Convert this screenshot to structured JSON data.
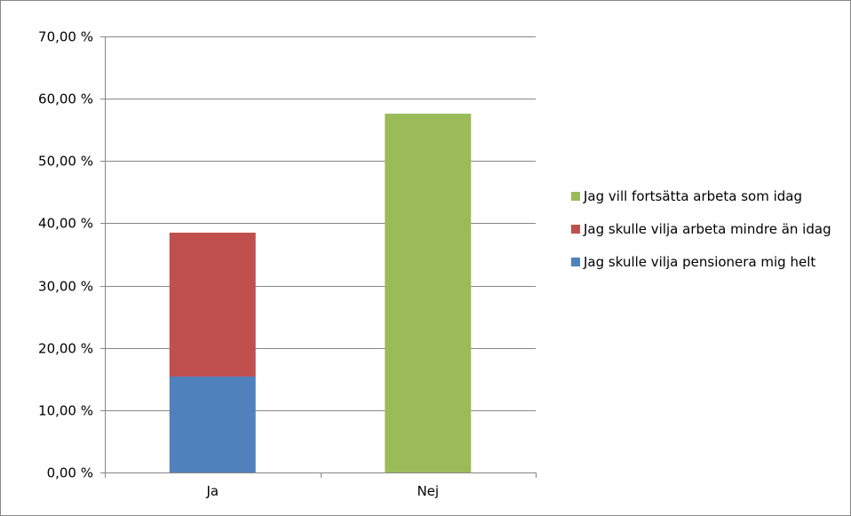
{
  "chart_data": {
    "type": "bar",
    "stacked": true,
    "categories": [
      "Ja",
      "Nej"
    ],
    "series": [
      {
        "name": "Jag skulle vilja pensionera mig helt",
        "color": "#4F81BD",
        "values": [
          15.4,
          0
        ]
      },
      {
        "name": "Jag skulle vilja arbeta mindre än idag",
        "color": "#C0504D",
        "values": [
          23.1,
          0
        ]
      },
      {
        "name": "Jag vill fortsätta arbeta som idag",
        "color": "#9BBB59",
        "values": [
          0,
          57.6
        ]
      }
    ],
    "ylim": [
      0,
      70
    ],
    "yticks": [
      "0,00 %",
      "10,00 %",
      "20,00 %",
      "30,00 %",
      "40,00 %",
      "50,00 %",
      "60,00 %",
      "70,00 %"
    ],
    "grid": true,
    "legend_position": "right"
  }
}
